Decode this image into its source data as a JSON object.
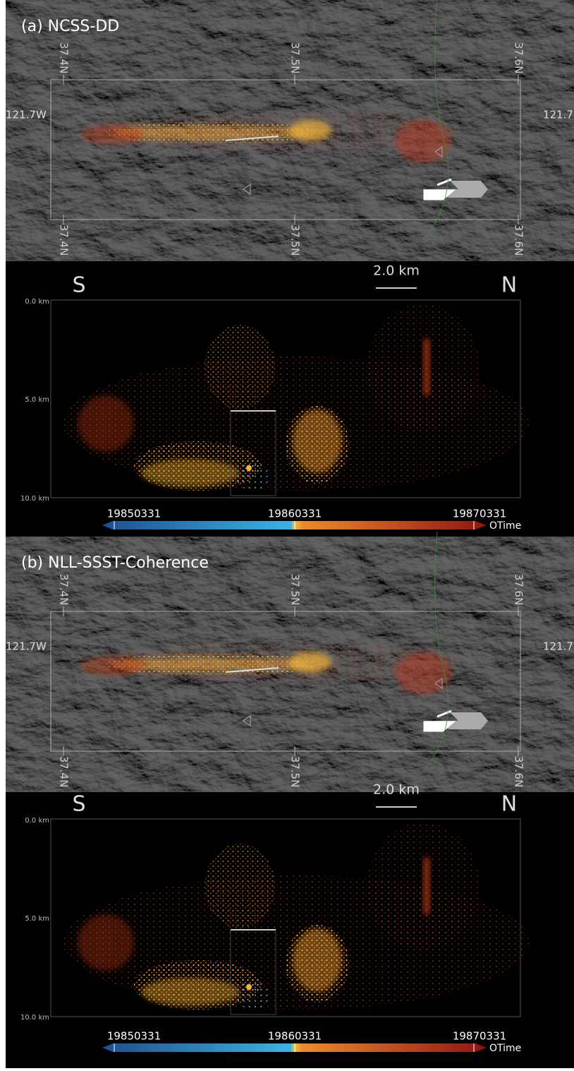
{
  "panels": [
    {
      "title": "(a) NCSS-DD",
      "map": {
        "lat_labels_top": [
          "37.4N",
          "37.5N",
          "37.6N"
        ],
        "lat_labels_bottom": [
          "37.4N",
          "37.5N",
          "37.6N"
        ],
        "lon_label_left": "121.7W",
        "lon_label_right": "121.7"
      },
      "section": {
        "left": "S",
        "right": "N",
        "scale": "2.0 km",
        "depth_ticks": [
          "0.0 km",
          "5.0 km",
          "10.0 km"
        ]
      },
      "colorbar": {
        "ticks": [
          "19850331",
          "19860331",
          "19870331"
        ],
        "label": "OTime"
      }
    },
    {
      "title": "(b) NLL-SSST-Coherence",
      "map": {
        "lat_labels_top": [
          "37.4N",
          "37.5N",
          "37.6N"
        ],
        "lat_labels_bottom": [
          "37.4N",
          "37.5N",
          "37.6N"
        ],
        "lon_label_left": "121.7W",
        "lon_label_right": "121.7"
      },
      "section": {
        "left": "S",
        "right": "N",
        "scale": "2.0 km",
        "depth_ticks": [
          "0.0 km",
          "5.0 km",
          "10.0 km"
        ]
      },
      "colorbar": {
        "ticks": [
          "19850331",
          "19860331",
          "19870331"
        ],
        "label": "OTime"
      }
    }
  ]
}
